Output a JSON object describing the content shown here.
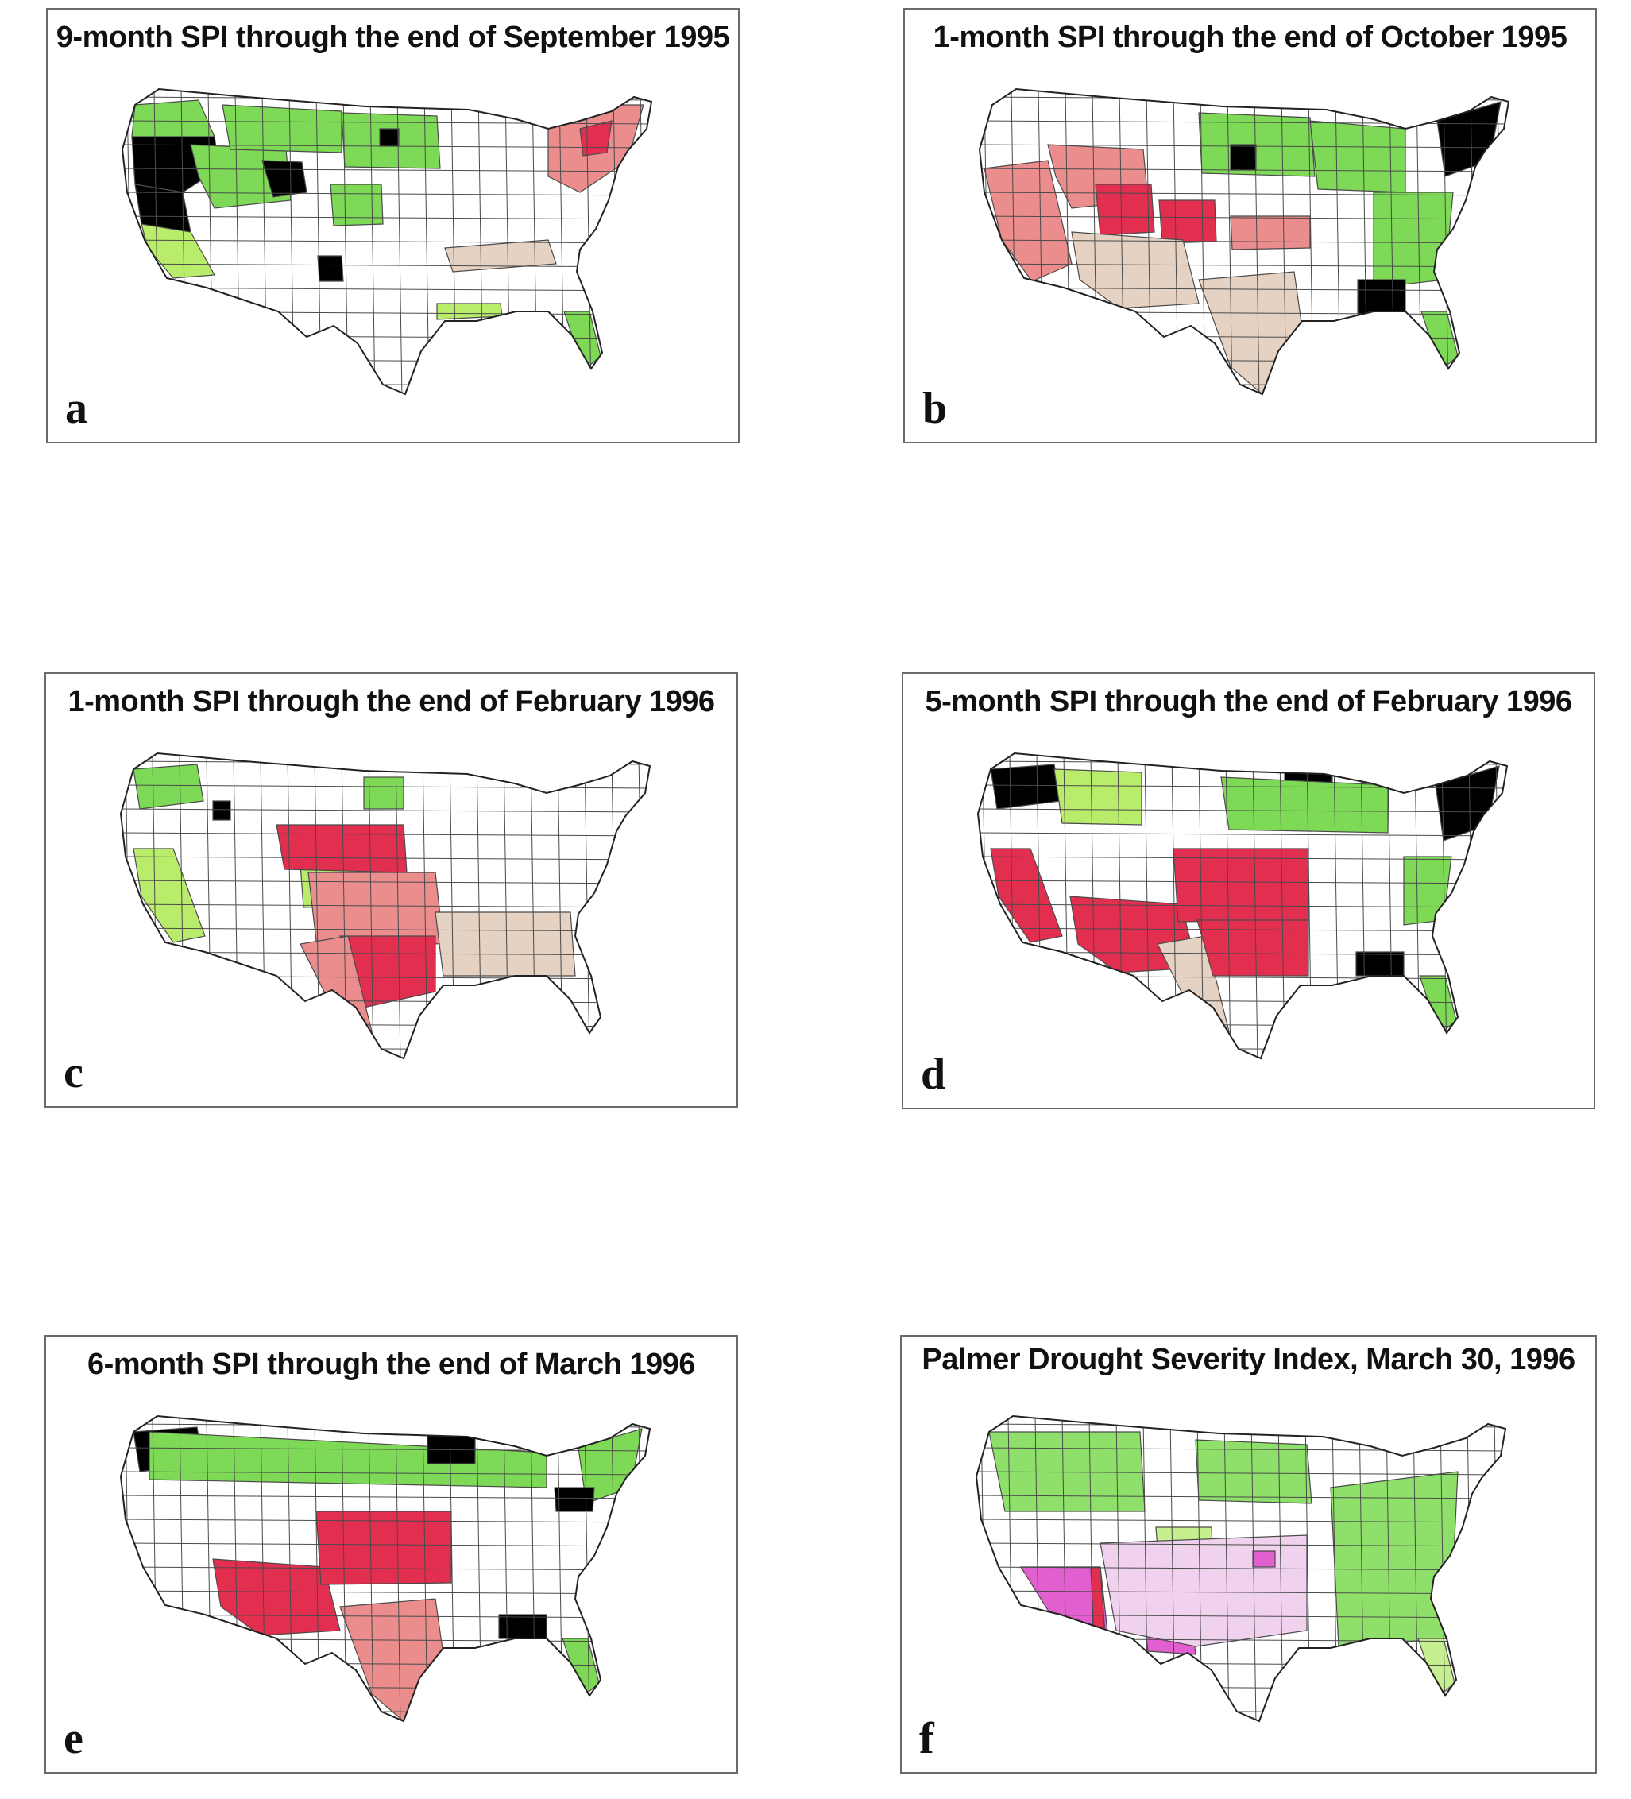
{
  "figure": {
    "panels": [
      {
        "id": "a",
        "letter": "a",
        "title": "9-month SPI through the end of September 1995",
        "regions": [
          {
            "name": "pacific-northwest",
            "category": "wet"
          },
          {
            "name": "oregon-cascades",
            "category": "very-wet"
          },
          {
            "name": "northern-california",
            "category": "very-wet"
          },
          {
            "name": "california-coast",
            "category": "moderately-wet"
          },
          {
            "name": "great-basin",
            "category": "wet"
          },
          {
            "name": "wyoming-basin",
            "category": "very-wet"
          },
          {
            "name": "northern-rockies",
            "category": "wet"
          },
          {
            "name": "dakotas",
            "category": "wet"
          },
          {
            "name": "dakota-center",
            "category": "very-wet"
          },
          {
            "name": "colorado-front",
            "category": "wet"
          },
          {
            "name": "new-mexico-center",
            "category": "very-wet"
          },
          {
            "name": "new-york-new-england",
            "category": "moderately-dry"
          },
          {
            "name": "upstate-new-york",
            "category": "severely-dry"
          },
          {
            "name": "mid-atlantic-dry",
            "category": "slightly-dry"
          },
          {
            "name": "florida",
            "category": "wet"
          },
          {
            "name": "gulf-coast",
            "category": "moderately-wet"
          }
        ]
      },
      {
        "id": "b",
        "letter": "b",
        "title": "1-month SPI through the end of October 1995",
        "regions": [
          {
            "name": "west-coast",
            "category": "moderately-dry"
          },
          {
            "name": "great-basin",
            "category": "moderately-dry"
          },
          {
            "name": "utah",
            "category": "severely-dry"
          },
          {
            "name": "colorado",
            "category": "severely-dry"
          },
          {
            "name": "kansas",
            "category": "moderately-dry"
          },
          {
            "name": "southwest",
            "category": "slightly-dry"
          },
          {
            "name": "texas",
            "category": "slightly-dry"
          },
          {
            "name": "northern-plains",
            "category": "wet"
          },
          {
            "name": "south-dakota",
            "category": "very-wet"
          },
          {
            "name": "great-lakes",
            "category": "wet"
          },
          {
            "name": "new-england",
            "category": "very-wet"
          },
          {
            "name": "appalachians",
            "category": "wet"
          },
          {
            "name": "alabama-georgia",
            "category": "very-wet"
          },
          {
            "name": "florida",
            "category": "wet"
          }
        ]
      },
      {
        "id": "c",
        "letter": "c",
        "title": "1-month SPI through the end of February 1996",
        "regions": [
          {
            "name": "washington",
            "category": "wet"
          },
          {
            "name": "california",
            "category": "moderately-wet"
          },
          {
            "name": "idaho",
            "category": "very-wet"
          },
          {
            "name": "colorado",
            "category": "moderately-wet"
          },
          {
            "name": "central-plains",
            "category": "severely-dry"
          },
          {
            "name": "kansas-oklahoma",
            "category": "moderately-dry"
          },
          {
            "name": "texas-east",
            "category": "severely-dry"
          },
          {
            "name": "texas-west",
            "category": "moderately-dry"
          },
          {
            "name": "southeast",
            "category": "slightly-dry"
          },
          {
            "name": "north-dakota",
            "category": "wet"
          }
        ]
      },
      {
        "id": "d",
        "letter": "d",
        "title": "5-month SPI through the end of February 1996",
        "regions": [
          {
            "name": "washington",
            "category": "very-wet"
          },
          {
            "name": "idaho-montana",
            "category": "moderately-wet"
          },
          {
            "name": "california",
            "category": "severely-dry"
          },
          {
            "name": "southwest",
            "category": "severely-dry"
          },
          {
            "name": "plains",
            "category": "severely-dry"
          },
          {
            "name": "texas-west",
            "category": "slightly-dry"
          },
          {
            "name": "oklahoma-texas",
            "category": "severely-dry"
          },
          {
            "name": "minnesota",
            "category": "very-wet"
          },
          {
            "name": "north-central",
            "category": "wet"
          },
          {
            "name": "new-england",
            "category": "very-wet"
          },
          {
            "name": "alabama",
            "category": "very-wet"
          },
          {
            "name": "florida",
            "category": "wet"
          },
          {
            "name": "mid-atlantic",
            "category": "wet"
          }
        ]
      },
      {
        "id": "e",
        "letter": "e",
        "title": "6-month SPI through the end of March 1996",
        "regions": [
          {
            "name": "washington",
            "category": "very-wet"
          },
          {
            "name": "northern-tier",
            "category": "wet"
          },
          {
            "name": "minnesota",
            "category": "very-wet"
          },
          {
            "name": "southwest",
            "category": "severely-dry"
          },
          {
            "name": "plains",
            "category": "severely-dry"
          },
          {
            "name": "texas",
            "category": "moderately-dry"
          },
          {
            "name": "new-england",
            "category": "wet"
          },
          {
            "name": "pennsylvania",
            "category": "very-wet"
          },
          {
            "name": "alabama",
            "category": "very-wet"
          },
          {
            "name": "florida",
            "category": "wet"
          }
        ]
      },
      {
        "id": "f",
        "letter": "f",
        "title": "Palmer Drought Severity Index, March 30, 1996",
        "regions": [
          {
            "name": "northwest",
            "category": "pdsi-wet"
          },
          {
            "name": "northern-plains",
            "category": "pdsi-wet"
          },
          {
            "name": "colorado",
            "category": "pdsi-moist"
          },
          {
            "name": "east",
            "category": "pdsi-wet"
          },
          {
            "name": "arizona-california",
            "category": "pdsi-severe"
          },
          {
            "name": "arizona-line",
            "category": "severely-dry"
          },
          {
            "name": "new-mexico",
            "category": "pdsi-severe"
          },
          {
            "name": "southern-plains",
            "category": "pdsi-mild"
          },
          {
            "name": "oklahoma",
            "category": "pdsi-severe"
          },
          {
            "name": "florida",
            "category": "pdsi-moist"
          }
        ]
      }
    ]
  },
  "colors": {
    "background": "#ffffff",
    "boundary": "#4a4a4a",
    "very-wet": "#000000",
    "wet": "#7ed957",
    "moderately-wet": "#b9ec6a",
    "slightly-dry": "#e6d2c2",
    "moderately-dry": "#ec8d8d",
    "severely-dry": "#e32f4f",
    "pdsi-wet": "#8fe06a",
    "pdsi-moist": "#c6f08f",
    "pdsi-mild": "#f1d2ee",
    "pdsi-severe": "#e25fd0"
  }
}
